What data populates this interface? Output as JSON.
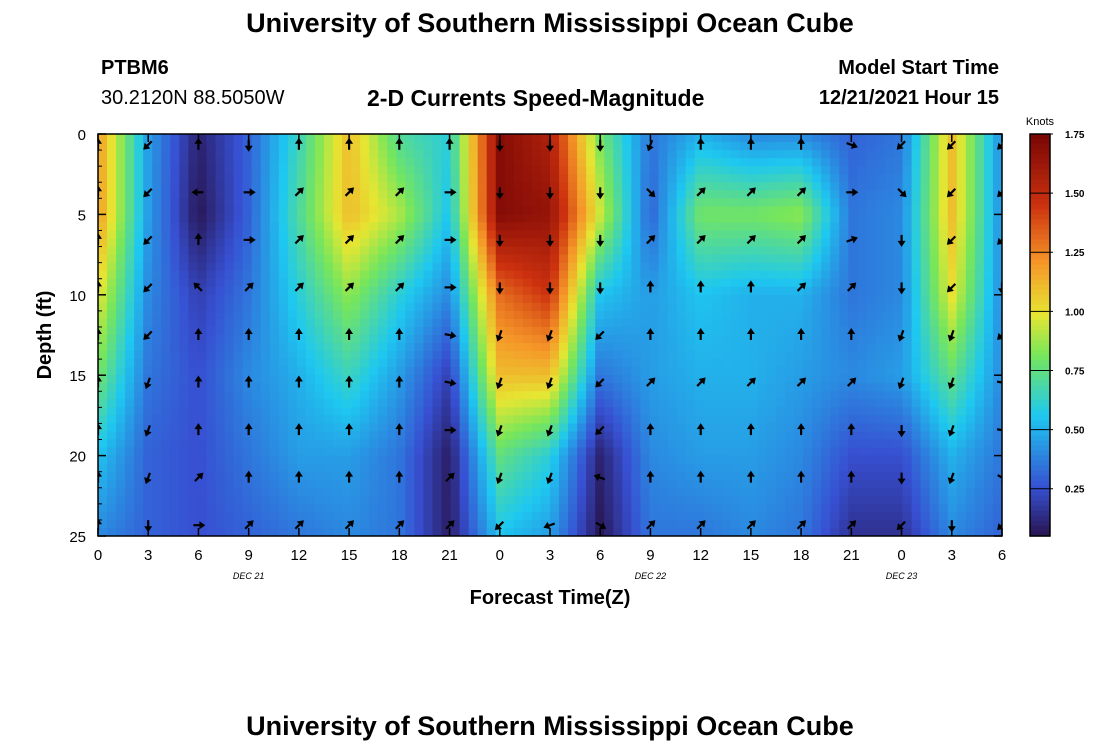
{
  "header": {
    "title": "University of Southern Mississippi Ocean Cube",
    "station": "PTBM6",
    "coords": "30.2120N  88.5050W",
    "subtitle": "2-D Currents Speed-Magnitude",
    "model_label": "Model Start Time",
    "model_time": "12/21/2021 Hour 15"
  },
  "footer": {
    "title": "University of Southern Mississippi Ocean Cube"
  },
  "chart_data": {
    "type": "heatmap",
    "title": "2-D Currents Speed-Magnitude",
    "xlabel": "Forecast Time(Z)",
    "ylabel": "Depth (ft)",
    "x_ticks": [
      "0",
      "3",
      "6",
      "9",
      "12",
      "15",
      "18",
      "21",
      "0",
      "3",
      "6",
      "9",
      "12",
      "15",
      "18",
      "21",
      "0",
      "3",
      "6"
    ],
    "x_date_labels": [
      {
        "tick_index": 3,
        "label": "DEC 21"
      },
      {
        "tick_index": 11,
        "label": "DEC 22"
      },
      {
        "tick_index": 16,
        "label": "DEC 23"
      }
    ],
    "y_ticks": [
      0,
      5,
      10,
      15,
      20,
      25
    ],
    "ylim": [
      0,
      25
    ],
    "depth_inverted": true,
    "colorbar": {
      "label": "Knots",
      "ticks": [
        "1.75",
        "1.50",
        "1.25",
        "1.00",
        "0.75",
        "0.50",
        "0.25"
      ],
      "range": [
        0.05,
        1.75
      ]
    },
    "speed_columns_x": [
      "0",
      "3",
      "6",
      "9",
      "12",
      "15",
      "18",
      "21",
      "0",
      "3",
      "6",
      "9",
      "12",
      "15",
      "18",
      "21",
      "0",
      "3",
      "6"
    ],
    "speed_rows_depth": [
      0,
      5,
      10,
      15,
      20,
      25
    ],
    "speed_knots": [
      [
        1.2,
        0.45,
        0.1,
        0.3,
        0.65,
        1.1,
        0.7,
        0.6,
        1.7,
        1.55,
        0.8,
        0.35,
        0.5,
        0.4,
        0.4,
        0.3,
        0.35,
        1.1,
        0.4
      ],
      [
        1.2,
        0.45,
        0.06,
        0.3,
        0.7,
        1.1,
        0.9,
        0.55,
        1.7,
        1.65,
        0.95,
        0.3,
        0.8,
        0.8,
        0.85,
        0.35,
        0.4,
        1.1,
        0.4
      ],
      [
        1.0,
        0.4,
        0.2,
        0.35,
        0.6,
        0.85,
        0.6,
        0.4,
        1.3,
        1.45,
        0.55,
        0.45,
        0.55,
        0.5,
        0.5,
        0.35,
        0.4,
        1.0,
        0.4
      ],
      [
        0.8,
        0.35,
        0.25,
        0.4,
        0.5,
        0.65,
        0.45,
        0.2,
        1.1,
        1.1,
        0.35,
        0.45,
        0.5,
        0.5,
        0.45,
        0.4,
        0.45,
        0.75,
        0.4
      ],
      [
        0.55,
        0.3,
        0.25,
        0.35,
        0.45,
        0.45,
        0.35,
        0.08,
        0.75,
        0.6,
        0.1,
        0.4,
        0.45,
        0.45,
        0.4,
        0.25,
        0.25,
        0.5,
        0.35
      ],
      [
        0.4,
        0.3,
        0.25,
        0.3,
        0.35,
        0.4,
        0.35,
        0.08,
        0.55,
        0.45,
        0.06,
        0.35,
        0.35,
        0.4,
        0.35,
        0.15,
        0.15,
        0.4,
        0.3
      ]
    ],
    "arrow_directions_deg": [
      [
        0,
        225,
        0,
        180,
        0,
        0,
        0,
        0,
        180,
        180,
        180,
        200,
        0,
        0,
        0,
        110,
        225,
        225,
        225
      ],
      [
        0,
        225,
        270,
        90,
        45,
        45,
        45,
        90,
        180,
        180,
        180,
        135,
        45,
        45,
        45,
        90,
        135,
        225,
        225
      ],
      [
        0,
        225,
        0,
        90,
        45,
        45,
        45,
        90,
        180,
        180,
        180,
        45,
        45,
        45,
        45,
        70,
        180,
        225,
        225
      ],
      [
        0,
        225,
        315,
        45,
        45,
        45,
        45,
        90,
        180,
        180,
        180,
        0,
        0,
        0,
        45,
        45,
        180,
        225,
        180
      ],
      [
        0,
        225,
        0,
        0,
        0,
        0,
        0,
        100,
        200,
        200,
        225,
        0,
        0,
        0,
        0,
        0,
        200,
        200,
        225
      ],
      [
        0,
        200,
        0,
        0,
        0,
        0,
        0,
        100,
        200,
        200,
        225,
        45,
        45,
        45,
        45,
        45,
        200,
        200,
        100
      ],
      [
        0,
        200,
        0,
        0,
        0,
        0,
        0,
        90,
        200,
        200,
        225,
        0,
        0,
        0,
        0,
        0,
        180,
        200,
        100
      ],
      [
        0,
        200,
        45,
        0,
        0,
        0,
        0,
        45,
        200,
        200,
        290,
        0,
        0,
        0,
        0,
        0,
        180,
        200,
        120
      ],
      [
        0,
        180,
        90,
        45,
        45,
        45,
        45,
        45,
        225,
        250,
        120,
        45,
        45,
        45,
        45,
        45,
        225,
        180,
        225
      ]
    ]
  }
}
